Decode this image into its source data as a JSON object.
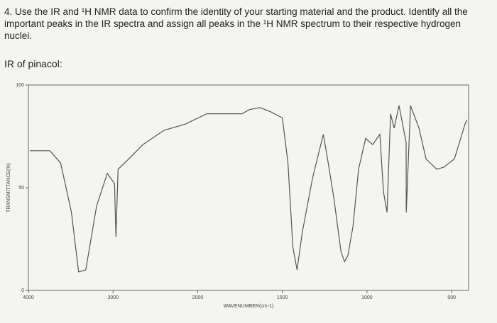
{
  "question": [
    "4.  Use the IR and ¹H NMR data to confirm the identity of your starting material and the product.  Identify all the",
    "important peaks in the IR spectra and assign all peaks in the ¹H NMR spectrum to their respective hydrogen",
    "nuclei."
  ],
  "subheading": "IR of pinacol:",
  "chart_data": {
    "type": "line",
    "x_label": "WAVENUMBER(cm-1)",
    "y_label": "TRANSMITTANCE(%)",
    "xlim": [
      4000,
      400
    ],
    "xticks": [
      4000,
      3000,
      2000,
      1500,
      1000,
      500
    ],
    "ylim": [
      0,
      100
    ],
    "yticks": [
      0,
      50,
      100
    ],
    "series": [
      {
        "color": "#555555",
        "x": [
          3983,
          3746,
          3619,
          3492,
          3407,
          3322,
          3195,
          3068,
          2983,
          2966,
          2941,
          2815,
          2647,
          2395,
          2143,
          1946,
          1821,
          1738,
          1696,
          1633,
          1571,
          1500,
          1467,
          1438,
          1413,
          1383,
          1321,
          1258,
          1229,
          1196,
          1154,
          1133,
          1113,
          1083,
          1050,
          1008,
          966,
          924,
          903,
          882,
          861,
          840,
          811,
          769,
          768,
          743,
          693,
          651,
          588,
          546,
          484,
          421,
          410
        ],
        "values": [
          68,
          68,
          62,
          38,
          9,
          10,
          41,
          57,
          52,
          26,
          59,
          64,
          71,
          78,
          81,
          86,
          86,
          86,
          88,
          89,
          87,
          84,
          62,
          21,
          10,
          28,
          55,
          76,
          62,
          45,
          19,
          14,
          17,
          31,
          59,
          74,
          71,
          76,
          48,
          38,
          86,
          79,
          90,
          72,
          38,
          90,
          79,
          64,
          59,
          60,
          64,
          81,
          83
        ]
      }
    ]
  }
}
